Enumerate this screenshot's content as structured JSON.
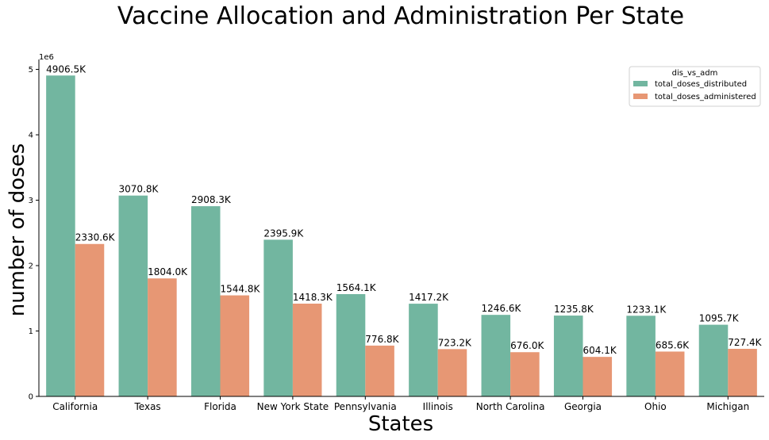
{
  "chart_data": {
    "type": "bar",
    "title": "Vaccine Allocation and Administration Per State",
    "xlabel": "States",
    "ylabel": "number of doses",
    "y_offset_label": "1e6",
    "ylim": [
      0,
      5152000
    ],
    "yticks": [
      0,
      1000000,
      2000000,
      3000000,
      4000000,
      5000000
    ],
    "ytick_labels": [
      "0",
      "1",
      "2",
      "3",
      "4",
      "5"
    ],
    "categories": [
      "California",
      "Texas",
      "Florida",
      "New York State",
      "Pennsylvania",
      "Illinois",
      "North Carolina",
      "Georgia",
      "Ohio",
      "Michigan"
    ],
    "legend_title": "dis_vs_adm",
    "legend_position": "top-right",
    "grid": false,
    "series": [
      {
        "name": "total_doses_distributed",
        "color": "#72b6a0",
        "values": [
          4906500,
          3070800,
          2908300,
          2395900,
          1564100,
          1417200,
          1246600,
          1235800,
          1233100,
          1095700
        ],
        "labels": [
          "4906.5K",
          "3070.8K",
          "2908.3K",
          "2395.9K",
          "1564.1K",
          "1417.2K",
          "1246.6K",
          "1235.8K",
          "1233.1K",
          "1095.7K"
        ]
      },
      {
        "name": "total_doses_administered",
        "color": "#e79774",
        "values": [
          2330600,
          1804000,
          1544800,
          1418300,
          776800,
          723200,
          676000,
          604100,
          685600,
          727400
        ],
        "labels": [
          "2330.6K",
          "1804.0K",
          "1544.8K",
          "1418.3K",
          "776.8K",
          "723.2K",
          "676.0K",
          "604.1K",
          "685.6K",
          "727.4K"
        ]
      }
    ]
  }
}
